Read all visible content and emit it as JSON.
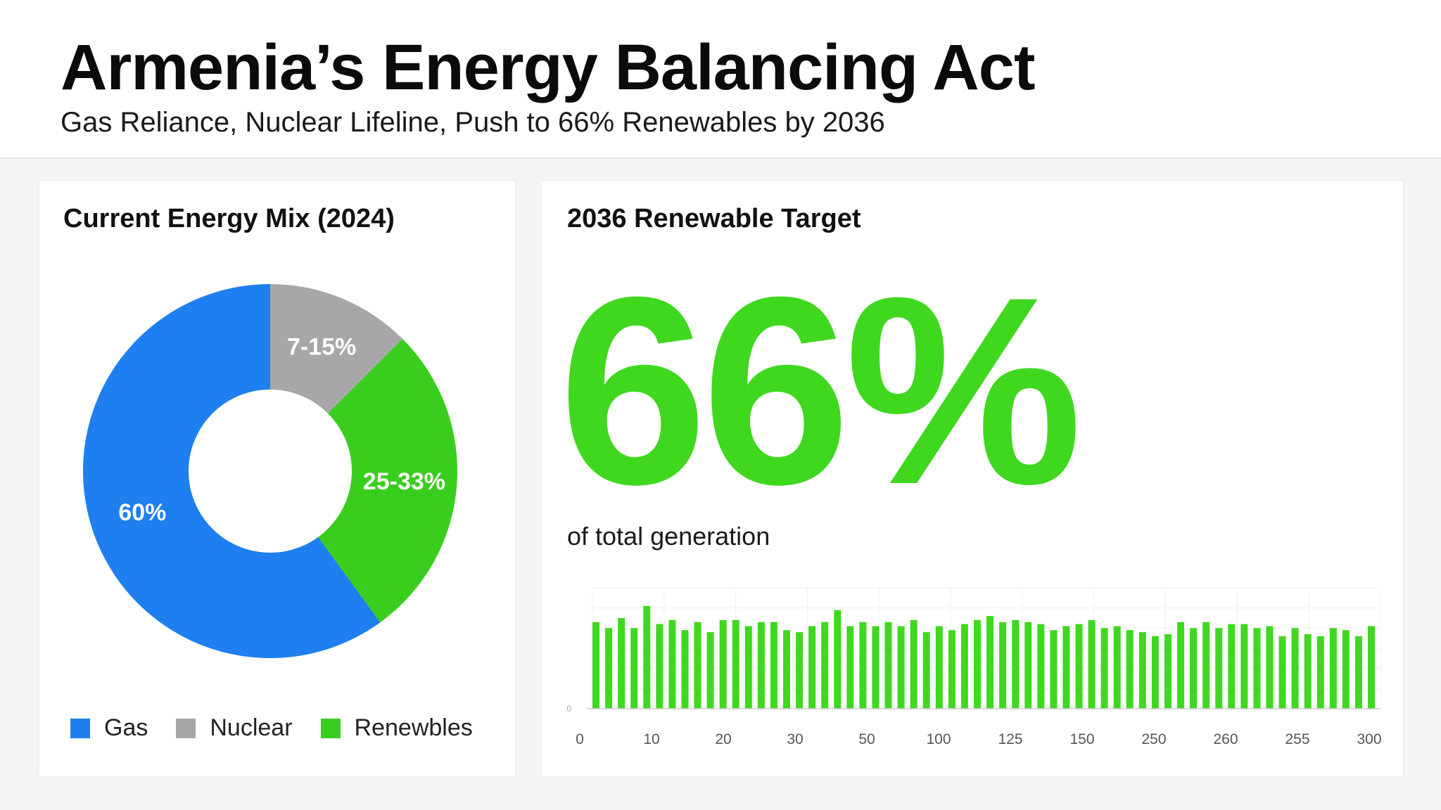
{
  "header": {
    "title": "Armenia’s Energy Balancing Act",
    "subtitle": "Gas Reliance, Nuclear Lifeline, Push to 66% Renewables by 2036"
  },
  "colors": {
    "gas": "#1e7ff0",
    "nuclear": "#a7a7a7",
    "renewables": "#39cd1e",
    "accent": "#3fd81f"
  },
  "mix_card": {
    "title": "Current Energy Mix (2024)",
    "legend": [
      {
        "label": "Gas",
        "color": "#1e7ff0"
      },
      {
        "label": "Nuclear",
        "color": "#a7a7a7"
      },
      {
        "label": "Renewbles",
        "color": "#39cd1e"
      }
    ]
  },
  "target_card": {
    "title": "2036 Renewable Target",
    "value": "66%",
    "caption": "of total generation"
  },
  "chart_data": [
    {
      "type": "pie",
      "title": "Current Energy Mix (2024)",
      "donut": true,
      "categories": [
        "Nuclear",
        "Renewbles",
        "Gas"
      ],
      "values": [
        12.5,
        27.5,
        60
      ],
      "labels": [
        "7-15%",
        "25-33%",
        "60%"
      ],
      "colors": [
        "#a7a7a7",
        "#39cd1e",
        "#1e7ff0"
      ],
      "legend": "bottom"
    },
    {
      "type": "bar",
      "title": "",
      "x_ticks": [
        "0",
        "10",
        "20",
        "30",
        "50",
        "100",
        "125",
        "150",
        "250",
        "260",
        "255",
        "300"
      ],
      "y_ticks": [
        "0",
        "",
        "",
        "",
        "",
        "",
        ""
      ],
      "ylim": [
        0,
        6
      ],
      "values": [
        4.3,
        4.0,
        4.5,
        4.0,
        5.1,
        4.2,
        4.4,
        3.9,
        4.3,
        3.8,
        4.4,
        4.4,
        4.1,
        4.3,
        4.3,
        3.9,
        3.8,
        4.1,
        4.3,
        4.9,
        4.1,
        4.3,
        4.1,
        4.3,
        4.1,
        4.4,
        3.8,
        4.1,
        3.9,
        4.2,
        4.4,
        4.6,
        4.3,
        4.4,
        4.3,
        4.2,
        3.9,
        4.1,
        4.2,
        4.4,
        4.0,
        4.1,
        3.9,
        3.8,
        3.6,
        3.7,
        4.3,
        4.0,
        4.3,
        4.0,
        4.2,
        4.2,
        4.0,
        4.1,
        3.6,
        4.0,
        3.7,
        3.6,
        4.0,
        3.9,
        3.6,
        4.1
      ]
    }
  ]
}
